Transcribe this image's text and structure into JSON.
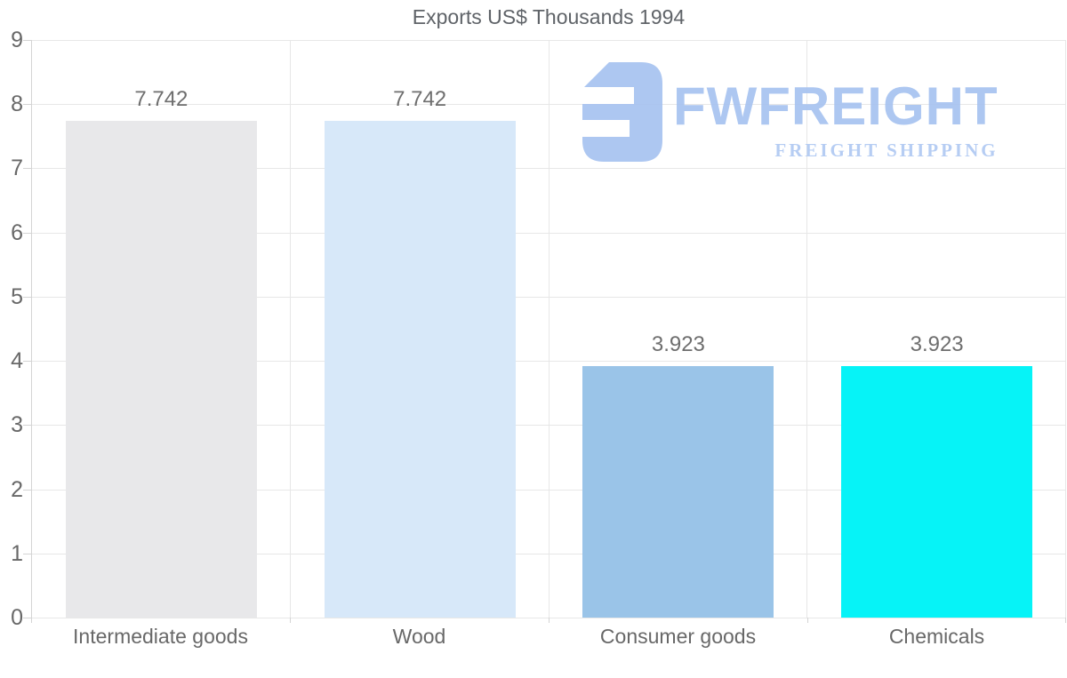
{
  "chart_data": {
    "type": "bar",
    "title": "Exports US$ Thousands 1994",
    "categories": [
      "Intermediate goods",
      "Wood",
      "Consumer goods",
      "Chemicals"
    ],
    "values": [
      7.742,
      7.742,
      3.923,
      3.923
    ],
    "value_labels": [
      "7.742",
      "7.742",
      "3.923",
      "3.923"
    ],
    "bar_colors": [
      "#e8e8ea",
      "#d7e8f9",
      "#9ac4e8",
      "#06f3f7"
    ],
    "ylim": [
      0,
      9
    ],
    "yticks": [
      "0",
      "1",
      "2",
      "3",
      "4",
      "5",
      "6",
      "7",
      "8",
      "9"
    ],
    "xlabel": "",
    "ylabel": "",
    "legend": "none",
    "grid": "horizontal lines at integers, vertical lines at category boundaries"
  },
  "watermark": {
    "brand": "FWFREIGHT",
    "tagline": "FREIGHT SHIPPING",
    "brand_color": "#a7c3f0",
    "tagline_color": "#b0c9f3"
  },
  "style": {
    "text_color": "#686868",
    "title_color": "#5f6368",
    "value_label_color": "#6e6e6e",
    "gridline_color": "#e7e7e7",
    "axis_color": "#d4d4d4",
    "background": "#ffffff"
  }
}
